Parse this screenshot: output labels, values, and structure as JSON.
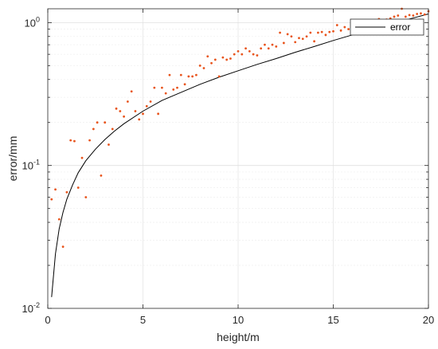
{
  "chart_data": {
    "type": "scatter",
    "xlabel": "height/m",
    "ylabel": "error/mm",
    "xlim": [
      0,
      20
    ],
    "ylim": [
      0.01,
      1.25
    ],
    "yscale": "log",
    "grid": true,
    "legend": {
      "placement": "top-right",
      "entries": [
        "error"
      ]
    },
    "x_ticks": [
      0,
      5,
      10,
      15,
      20
    ],
    "x_tick_labels": [
      "0",
      "5",
      "10",
      "15",
      "20"
    ],
    "y_ticks": [
      0.01,
      0.1,
      1
    ],
    "y_tick_labels": [
      {
        "base": "10",
        "exp": "-2"
      },
      {
        "base": "10",
        "exp": "-1"
      },
      {
        "base": "10",
        "exp": "0"
      }
    ],
    "series": [
      {
        "name": "error",
        "kind": "line",
        "color": "#000000",
        "x": [
          0.2,
          0.4,
          0.6,
          0.8,
          1.0,
          1.3,
          1.6,
          2.0,
          2.5,
          3.0,
          3.5,
          4.0,
          5.0,
          6.0,
          7.0,
          8.0,
          9.0,
          10.0,
          11.0,
          12.0,
          13.0,
          14.0,
          15.0,
          16.0,
          17.0,
          18.0,
          19.0,
          20.0
        ],
        "y": [
          0.012,
          0.024,
          0.036,
          0.047,
          0.058,
          0.073,
          0.089,
          0.108,
          0.13,
          0.152,
          0.174,
          0.196,
          0.24,
          0.285,
          0.325,
          0.37,
          0.415,
          0.46,
          0.51,
          0.56,
          0.62,
          0.68,
          0.75,
          0.82,
          0.9,
          0.98,
          1.06,
          1.15
        ]
      },
      {
        "name": "",
        "kind": "scatter",
        "color": "#e8541c",
        "x": [
          0.2,
          0.4,
          0.6,
          0.8,
          1.0,
          1.2,
          1.4,
          1.6,
          1.8,
          2.0,
          2.2,
          2.4,
          2.6,
          2.8,
          3.0,
          3.2,
          3.4,
          3.6,
          3.8,
          4.0,
          4.2,
          4.4,
          4.6,
          4.8,
          5.0,
          5.2,
          5.4,
          5.6,
          5.8,
          6.0,
          6.2,
          6.4,
          6.6,
          6.8,
          7.0,
          7.2,
          7.4,
          7.6,
          7.8,
          8.0,
          8.2,
          8.4,
          8.6,
          8.8,
          9.0,
          9.2,
          9.4,
          9.6,
          9.8,
          10.0,
          10.2,
          10.4,
          10.6,
          10.8,
          11.0,
          11.2,
          11.4,
          11.6,
          11.8,
          12.0,
          12.2,
          12.4,
          12.6,
          12.8,
          13.0,
          13.2,
          13.4,
          13.6,
          13.8,
          14.0,
          14.2,
          14.4,
          14.6,
          14.8,
          15.0,
          15.2,
          15.4,
          15.6,
          15.8,
          16.0,
          16.2,
          16.4,
          16.6,
          16.8,
          17.0,
          17.2,
          17.4,
          17.6,
          17.8,
          18.0,
          18.2,
          18.4,
          18.6,
          18.8,
          19.0,
          19.2,
          19.4,
          19.6,
          19.8,
          20.0
        ],
        "y": [
          0.058,
          0.068,
          0.042,
          0.027,
          0.065,
          0.15,
          0.148,
          0.07,
          0.113,
          0.06,
          0.15,
          0.18,
          0.2,
          0.085,
          0.2,
          0.14,
          0.18,
          0.25,
          0.24,
          0.22,
          0.28,
          0.33,
          0.24,
          0.21,
          0.23,
          0.26,
          0.28,
          0.35,
          0.23,
          0.35,
          0.32,
          0.43,
          0.34,
          0.35,
          0.43,
          0.37,
          0.42,
          0.42,
          0.43,
          0.5,
          0.48,
          0.58,
          0.52,
          0.55,
          0.42,
          0.57,
          0.55,
          0.56,
          0.6,
          0.63,
          0.6,
          0.66,
          0.63,
          0.6,
          0.59,
          0.66,
          0.7,
          0.66,
          0.7,
          0.68,
          0.85,
          0.72,
          0.83,
          0.8,
          0.73,
          0.78,
          0.77,
          0.8,
          0.85,
          0.74,
          0.85,
          0.86,
          0.82,
          0.86,
          0.87,
          0.96,
          0.88,
          0.93,
          0.9,
          0.95,
          0.95,
          0.99,
          0.96,
          1.0,
          1.02,
          1.0,
          1.06,
          1.03,
          1.05,
          1.07,
          1.1,
          1.12,
          1.25,
          1.1,
          1.13,
          1.12,
          1.15,
          1.16,
          1.14,
          1.2
        ]
      }
    ]
  }
}
